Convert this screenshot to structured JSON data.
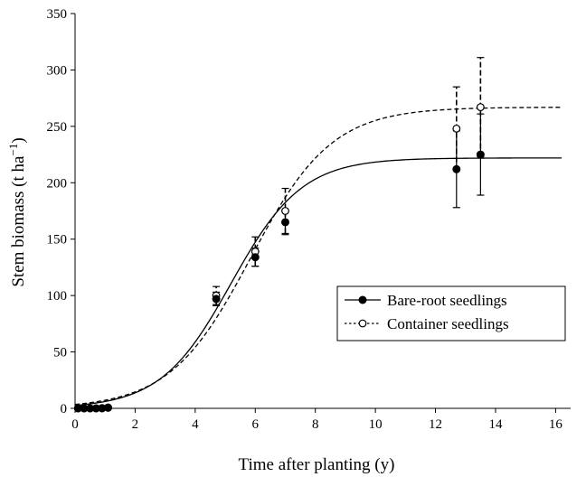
{
  "chart_data": {
    "type": "line",
    "xlabel": "Time after planting (y)",
    "ylabel_main": "Stem biomass (t ha",
    "ylabel_sup": "−1",
    "ylabel_tail": ")",
    "xlim": [
      0,
      16.5
    ],
    "ylim": [
      0,
      350
    ],
    "x_ticks": [
      "0",
      "2",
      "4",
      "6",
      "8",
      "10",
      "12",
      "14",
      "16"
    ],
    "y_ticks": [
      "0",
      "50",
      "100",
      "150",
      "200",
      "250",
      "300",
      "350"
    ],
    "legend_position": "lower-right",
    "grid": false,
    "series": [
      {
        "name": "Bare-root seedlings",
        "marker": "filled-circle",
        "line_style": "solid",
        "fit_curve": {
          "model": "logistic",
          "asymptote": 222,
          "rate": 0.85,
          "midpoint": 5.2,
          "x_range": [
            0,
            16.2
          ]
        },
        "points": [
          {
            "x": 0.1,
            "y": 0,
            "err": 0
          },
          {
            "x": 0.3,
            "y": 0,
            "err": 0
          },
          {
            "x": 0.5,
            "y": 0,
            "err": 0
          },
          {
            "x": 0.7,
            "y": 0,
            "err": 0
          },
          {
            "x": 0.9,
            "y": 0,
            "err": 0
          },
          {
            "x": 1.1,
            "y": 0.5,
            "err": 0
          },
          {
            "x": 4.7,
            "y": 97,
            "err": 6
          },
          {
            "x": 6.0,
            "y": 134,
            "err": 8
          },
          {
            "x": 7.0,
            "y": 165,
            "err": 11
          },
          {
            "x": 12.7,
            "y": 212,
            "err": 34
          },
          {
            "x": 13.5,
            "y": 225,
            "err": 36
          }
        ]
      },
      {
        "name": "Container seedlings",
        "marker": "open-circle",
        "line_style": "dashed",
        "fit_curve": {
          "model": "logistic",
          "asymptote": 267,
          "rate": 0.74,
          "midpoint": 5.85,
          "x_range": [
            0,
            16.2
          ]
        },
        "points": [
          {
            "x": 0.1,
            "y": 0,
            "err": 0
          },
          {
            "x": 0.3,
            "y": 0,
            "err": 0
          },
          {
            "x": 0.5,
            "y": 0,
            "err": 0
          },
          {
            "x": 0.7,
            "y": 0,
            "err": 0
          },
          {
            "x": 0.9,
            "y": 0.3,
            "err": 0
          },
          {
            "x": 1.1,
            "y": 0.8,
            "err": 0
          },
          {
            "x": 4.7,
            "y": 100,
            "err": 8
          },
          {
            "x": 6.0,
            "y": 139,
            "err": 13
          },
          {
            "x": 7.0,
            "y": 175,
            "err": 20
          },
          {
            "x": 12.7,
            "y": 248,
            "err": 37
          },
          {
            "x": 13.5,
            "y": 267,
            "err": 44
          }
        ]
      }
    ]
  }
}
